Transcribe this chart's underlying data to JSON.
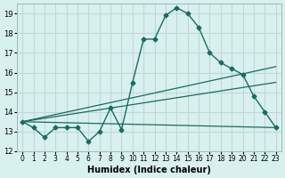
{
  "title": "",
  "xlabel": "Humidex (Indice chaleur)",
  "ylabel": "",
  "background_color": "#d8f0ee",
  "grid_color": "#c0d8d8",
  "line_color": "#1a6b60",
  "ylim": [
    12,
    19.5
  ],
  "xlim": [
    -0.5,
    23.5
  ],
  "yticks": [
    12,
    13,
    14,
    15,
    16,
    17,
    18,
    19
  ],
  "xticks": [
    0,
    1,
    2,
    3,
    4,
    5,
    6,
    7,
    8,
    9,
    10,
    11,
    12,
    13,
    14,
    15,
    16,
    17,
    18,
    19,
    20,
    21,
    22,
    23
  ],
  "xtick_labels": [
    "0",
    "1",
    "2",
    "3",
    "4",
    "5",
    "6",
    "7",
    "8",
    "9",
    "10",
    "11",
    "12",
    "13",
    "14",
    "15",
    "16",
    "17",
    "18",
    "19",
    "20",
    "21",
    "22",
    "23"
  ],
  "curve1_x": [
    0,
    1,
    2,
    3,
    4,
    5,
    6,
    7,
    8,
    9,
    10,
    11,
    12,
    13,
    14,
    15,
    16,
    17,
    18,
    19,
    20,
    21,
    22,
    23
  ],
  "curve1_y": [
    13.5,
    13.2,
    12.7,
    13.2,
    13.2,
    13.2,
    12.5,
    13.0,
    14.2,
    13.1,
    15.5,
    17.7,
    17.7,
    18.9,
    19.3,
    19.0,
    18.3,
    17.0,
    16.5,
    16.2,
    15.9,
    14.8,
    14.0,
    13.2
  ],
  "curve2_x": [
    0,
    23
  ],
  "curve2_y": [
    13.5,
    13.2
  ],
  "line1_x": [
    0,
    23
  ],
  "line1_y": [
    13.5,
    16.3
  ],
  "line2_x": [
    0,
    23
  ],
  "line2_y": [
    13.5,
    15.5
  ]
}
